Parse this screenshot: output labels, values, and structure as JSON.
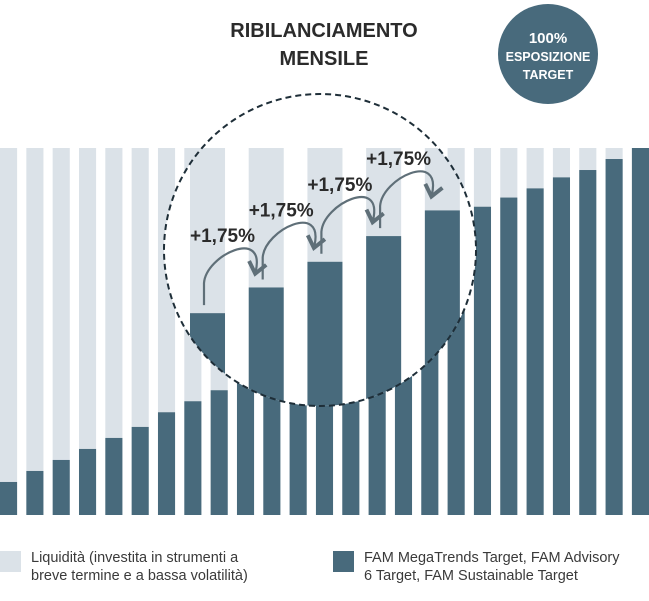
{
  "chart_data": {
    "type": "bar",
    "stacked": true,
    "title": "RIBILANCIAMENTO MENSILE",
    "title_lines": [
      "RIBILANCIAMENTO",
      "MENSILE"
    ],
    "badge_lines": [
      "100%",
      "ESPOSIZIONE",
      "TARGET"
    ],
    "x_count": 25,
    "ylim": [
      0,
      100
    ],
    "series": [
      {
        "name": "FAM MegaTrends Target, FAM Advisory 6 Target, FAM Sustainable Target",
        "color": "#486a7c",
        "values": [
          9,
          12,
          15,
          18,
          21,
          24,
          28,
          31,
          34,
          37.5,
          53,
          60,
          67,
          70,
          73,
          76,
          78,
          81,
          84,
          86.5,
          89,
          92,
          94,
          97,
          100
        ]
      },
      {
        "name": "Liquidità (investita in strumenti a breve termine e a bassa volatilità)",
        "color": "#dbe2e8",
        "values": [
          91,
          88,
          85,
          82,
          79,
          76,
          72,
          69,
          66,
          62.5,
          47,
          40,
          33,
          30,
          27,
          24,
          22,
          19,
          16,
          13.5,
          11,
          8,
          6,
          3,
          0
        ]
      }
    ],
    "highlight": {
      "bars": [
        7,
        9,
        11,
        13,
        15
      ],
      "heights": [
        55,
        62,
        69,
        76,
        83
      ],
      "step_labels": [
        "+1,75%",
        "+1,75%",
        "+1,75%",
        "+1,75%"
      ]
    }
  },
  "legend": {
    "liquidity": {
      "line1": "Liquidità (investita in strumenti a",
      "line2": "breve termine e a bassa volatilità)",
      "color": "#dbe2e8"
    },
    "funds": {
      "line1": "FAM MegaTrends Target, FAM Advisory",
      "line2": "6 Target, FAM Sustainable Target",
      "color": "#486a7c"
    }
  }
}
